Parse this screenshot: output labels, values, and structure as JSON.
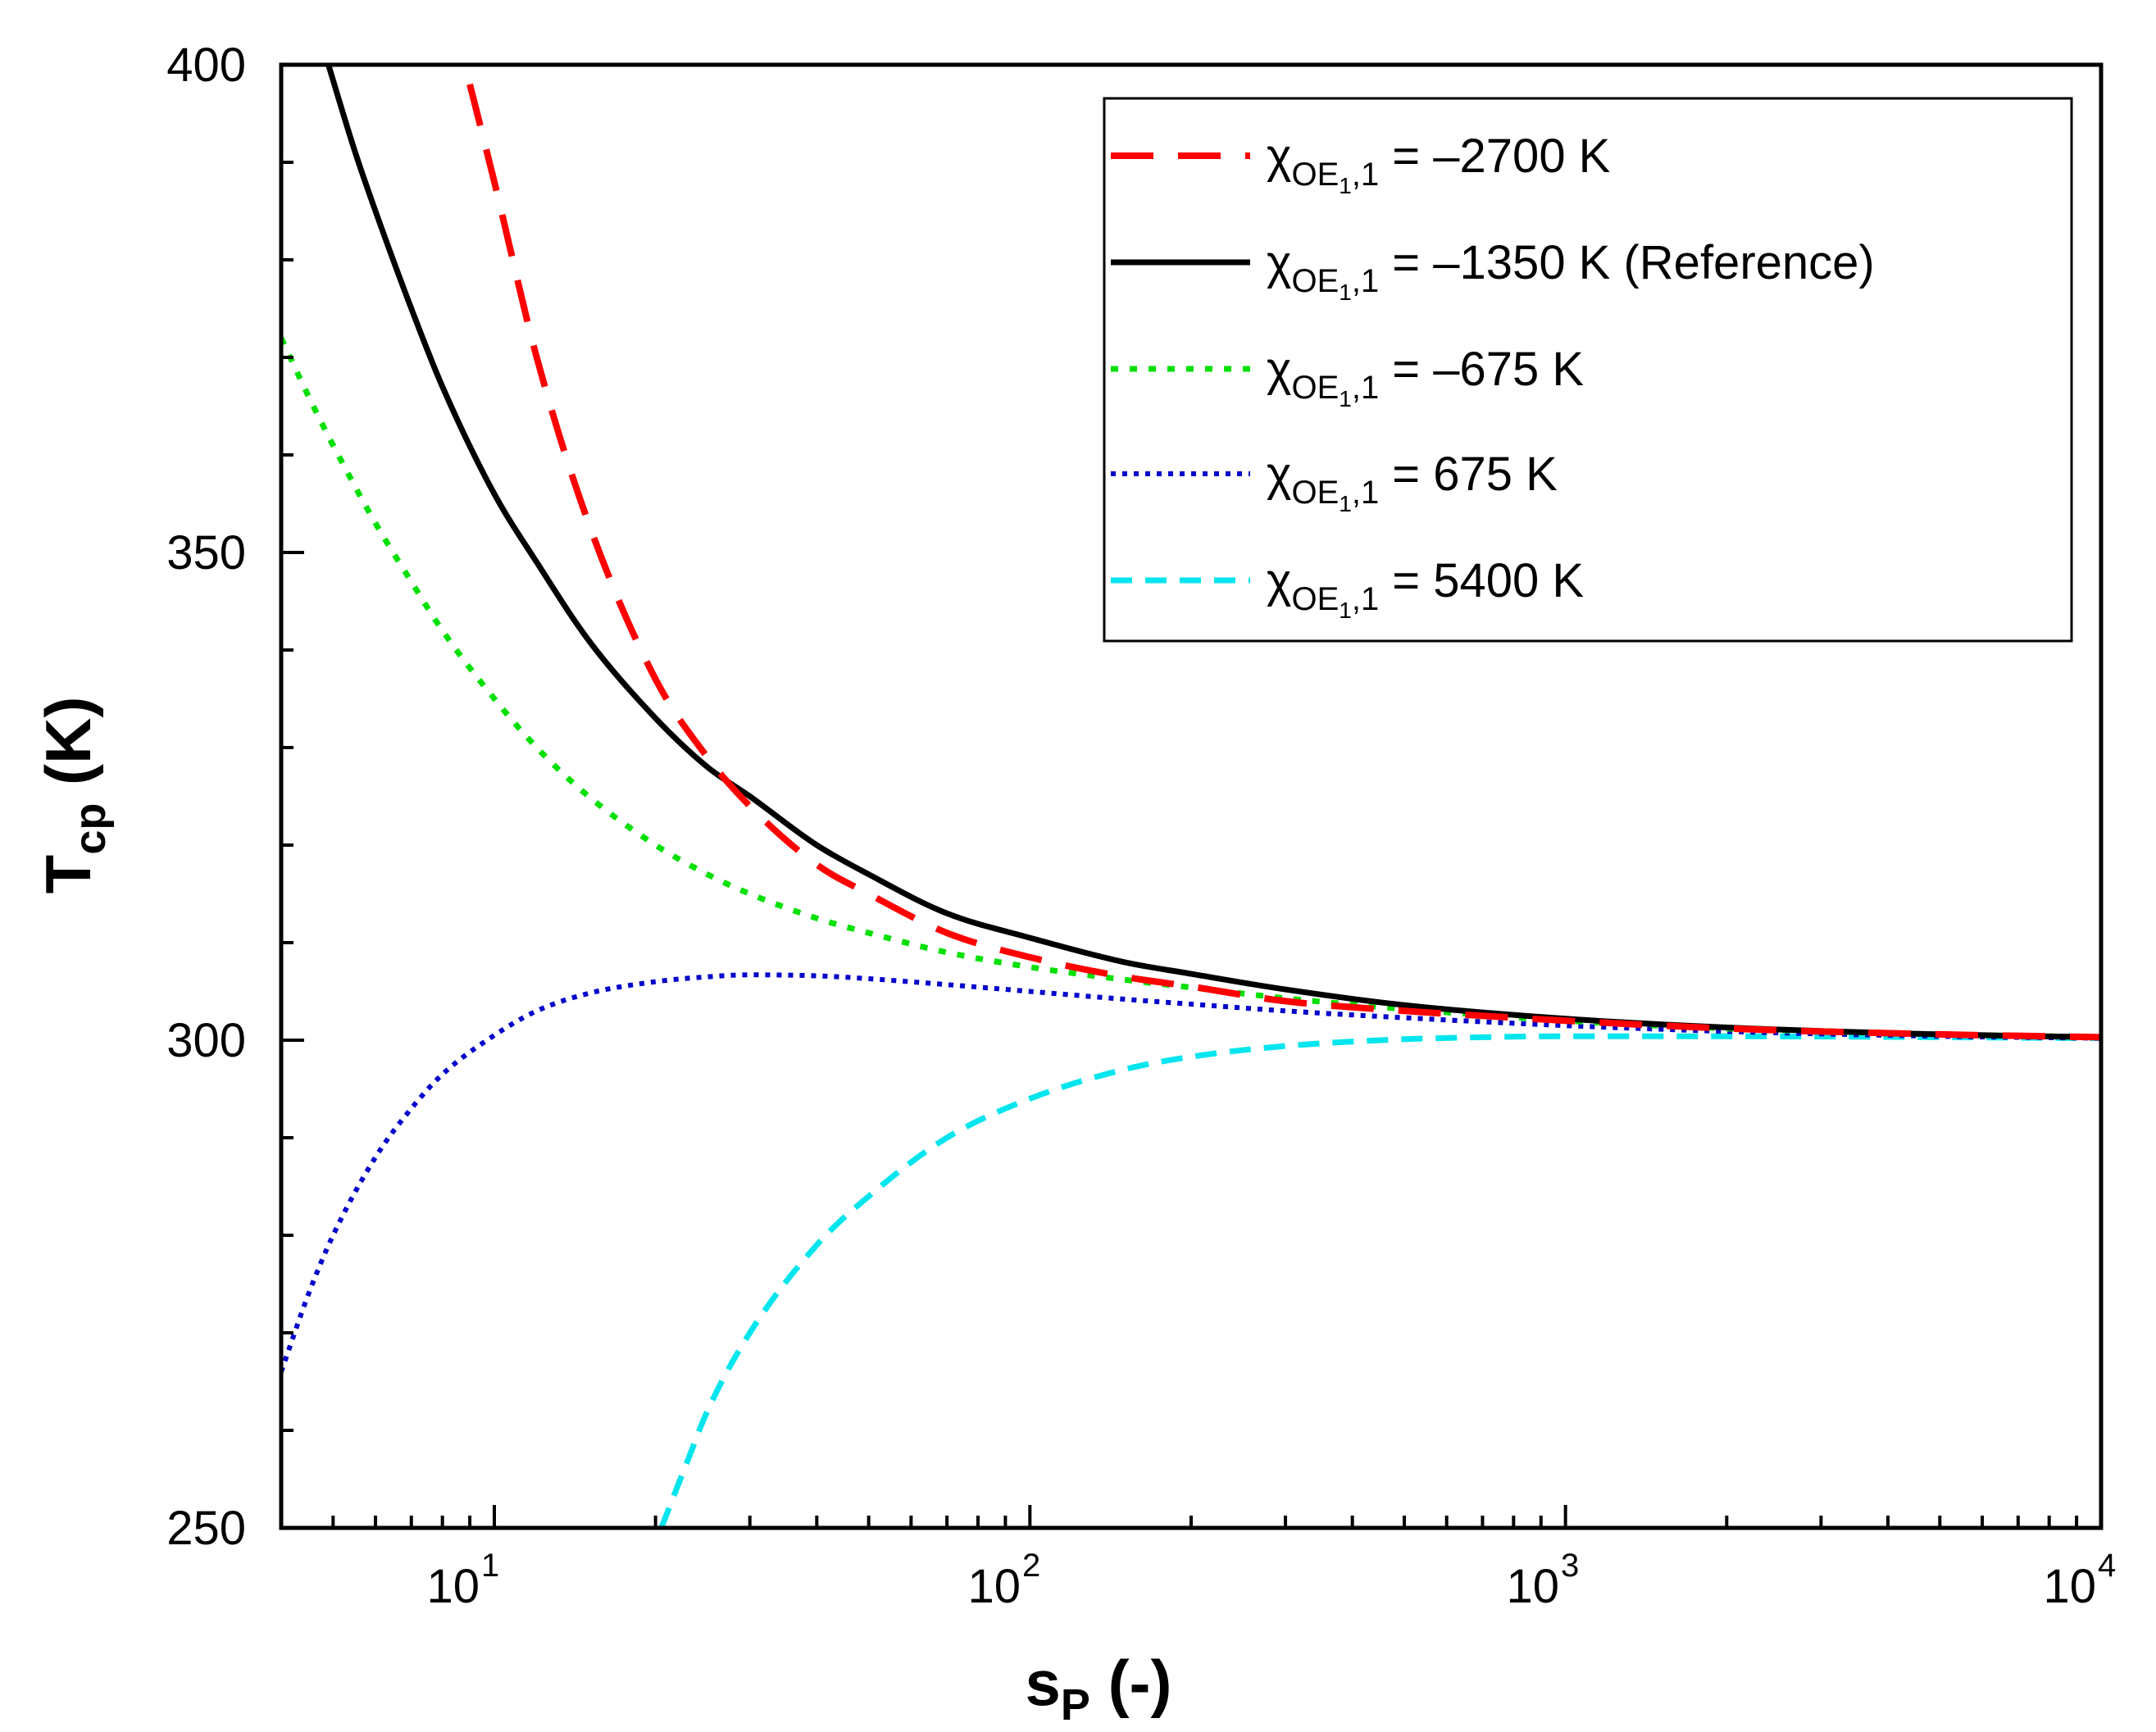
{
  "chart_data": {
    "type": "line",
    "title": "",
    "xlabel": "s",
    "xlabel_sub": "P",
    "xlabel_suffix": " (-)",
    "ylabel": "T",
    "ylabel_sub": "cp",
    "ylabel_suffix": " (K)",
    "xscale": "log",
    "xlim": [
      4,
      10000
    ],
    "ylim": [
      250,
      400
    ],
    "yticks": [
      "250",
      "300",
      "350",
      "400"
    ],
    "xticks": [
      {
        "base": "10",
        "exp": "1"
      },
      {
        "base": "10",
        "exp": "2"
      },
      {
        "base": "10",
        "exp": "3"
      },
      {
        "base": "10",
        "exp": "4"
      }
    ],
    "legend_position": "top-right",
    "series": [
      {
        "name_symbol": "χ",
        "name_sub_main": "OE",
        "name_sub_sub": "1",
        "name_sub_tail": ",1",
        "name_value": " = –2700 K",
        "color": "#ff0000",
        "style": "dashed",
        "x": [
          9,
          10,
          12,
          15,
          20,
          25,
          30,
          40,
          50,
          70,
          100,
          150,
          200,
          300,
          500,
          700,
          1000,
          2000,
          5000,
          10000
        ],
        "y": [
          398,
          388,
          370,
          353,
          337,
          329,
          324,
          318,
          315,
          311,
          308.5,
          306.5,
          305.5,
          304,
          303,
          302.5,
          302,
          301.2,
          300.6,
          300.3
        ]
      },
      {
        "name_symbol": "χ",
        "name_sub_main": "OE",
        "name_sub_sub": "1",
        "name_sub_tail": ",1",
        "name_value": " = –1350 K (Reference)",
        "color": "#000000",
        "style": "solid",
        "x": [
          4.9,
          5.5,
          6,
          7,
          8,
          10,
          12,
          15,
          20,
          25,
          30,
          40,
          50,
          70,
          100,
          150,
          200,
          300,
          500,
          1000,
          2000,
          5000,
          10000
        ],
        "y": [
          400,
          391,
          385,
          375,
          367,
          356,
          349,
          341,
          333,
          328,
          325,
          320,
          317,
          313,
          310.5,
          308,
          306.8,
          305.2,
          303.6,
          302.2,
          301.3,
          300.6,
          300.3
        ]
      },
      {
        "name_symbol": "χ",
        "name_sub_main": "OE",
        "name_sub_sub": "1",
        "name_sub_tail": ",1",
        "name_value": " = –675 K",
        "color": "#00e000",
        "style": "dotted-short",
        "x": [
          4,
          4.5,
          5,
          6,
          7,
          8,
          10,
          12,
          15,
          20,
          25,
          30,
          40,
          50,
          70,
          100,
          150,
          200,
          300,
          500,
          1000,
          2000,
          5000,
          10000
        ],
        "y": [
          372,
          366,
          361,
          353,
          347,
          342,
          335,
          330,
          325,
          320,
          317,
          315,
          312.5,
          311,
          309,
          307.5,
          306.2,
          305.4,
          304.3,
          303.2,
          302,
          301.2,
          300.6,
          300.3
        ]
      },
      {
        "name_symbol": "χ",
        "name_sub_main": "OE",
        "name_sub_sub": "1",
        "name_sub_tail": ",1",
        "name_value": " = 675 K",
        "color": "#0000cc",
        "style": "dotted",
        "x": [
          4,
          4.5,
          5,
          6,
          7,
          8,
          10,
          12,
          15,
          20,
          25,
          30,
          40,
          50,
          70,
          100,
          150,
          200,
          300,
          500,
          1000,
          2000,
          5000,
          10000
        ],
        "y": [
          266,
          274,
          280,
          288,
          293,
          296.5,
          300.5,
          303,
          304.8,
          306,
          306.5,
          306.7,
          306.6,
          306.3,
          305.7,
          305,
          304.2,
          303.7,
          303,
          302.3,
          301.5,
          300.9,
          300.4,
          300.2
        ]
      },
      {
        "name_symbol": "χ",
        "name_sub_main": "OE",
        "name_sub_sub": "1",
        "name_sub_tail": ",1",
        "name_value": " = 5400 K",
        "color": "#00e5ee",
        "style": "dashed-short",
        "x": [
          20.5,
          23,
          25,
          30,
          40,
          50,
          70,
          100,
          150,
          200,
          300,
          500,
          700,
          1000,
          2000,
          5000,
          10000
        ],
        "y": [
          250,
          257,
          262,
          270,
          279,
          284,
          290,
          294,
          297,
          298.3,
          299.4,
          300.1,
          300.3,
          300.4,
          300.4,
          300.3,
          300.2
        ]
      }
    ]
  }
}
